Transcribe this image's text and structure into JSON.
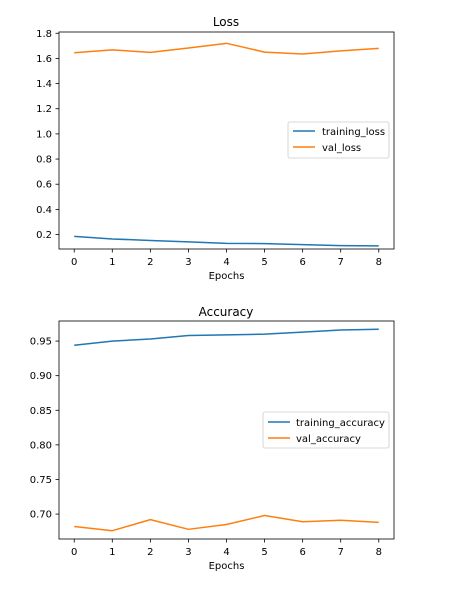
{
  "chart_data": [
    {
      "type": "line",
      "title": "Loss",
      "xlabel": "Epochs",
      "ylabel": "",
      "x": [
        0,
        1,
        2,
        3,
        4,
        5,
        6,
        7,
        8
      ],
      "xticks": [
        "0",
        "1",
        "2",
        "3",
        "4",
        "5",
        "6",
        "7",
        "8"
      ],
      "xlim": [
        -0.4,
        8.4
      ],
      "ylim": [
        0.085,
        1.81
      ],
      "yticks": [
        "0.2",
        "0.4",
        "0.6",
        "0.8",
        "1.0",
        "1.2",
        "1.4",
        "1.6",
        "1.8"
      ],
      "grid": false,
      "legend": "center-right",
      "series": [
        {
          "name": "training_loss",
          "color": "#1f77b4",
          "values": [
            0.185,
            0.165,
            0.153,
            0.142,
            0.13,
            0.128,
            0.12,
            0.112,
            0.11
          ]
        },
        {
          "name": "val_loss",
          "color": "#ff7f0e",
          "values": [
            1.645,
            1.668,
            1.648,
            1.683,
            1.72,
            1.65,
            1.635,
            1.66,
            1.68
          ]
        }
      ]
    },
    {
      "type": "line",
      "title": "Accuracy",
      "xlabel": "Epochs",
      "ylabel": "",
      "x": [
        0,
        1,
        2,
        3,
        4,
        5,
        6,
        7,
        8
      ],
      "xticks": [
        "0",
        "1",
        "2",
        "3",
        "4",
        "5",
        "6",
        "7",
        "8"
      ],
      "xlim": [
        -0.4,
        8.4
      ],
      "ylim": [
        0.664,
        0.979
      ],
      "yticks": [
        "0.70",
        "0.75",
        "0.80",
        "0.85",
        "0.90",
        "0.95"
      ],
      "grid": false,
      "legend": "center-right",
      "series": [
        {
          "name": "training_accuracy",
          "color": "#1f77b4",
          "values": [
            0.944,
            0.95,
            0.953,
            0.958,
            0.959,
            0.96,
            0.963,
            0.966,
            0.967
          ]
        },
        {
          "name": "val_accuracy",
          "color": "#ff7f0e",
          "values": [
            0.682,
            0.676,
            0.692,
            0.678,
            0.685,
            0.698,
            0.689,
            0.691,
            0.688
          ]
        }
      ]
    }
  ]
}
